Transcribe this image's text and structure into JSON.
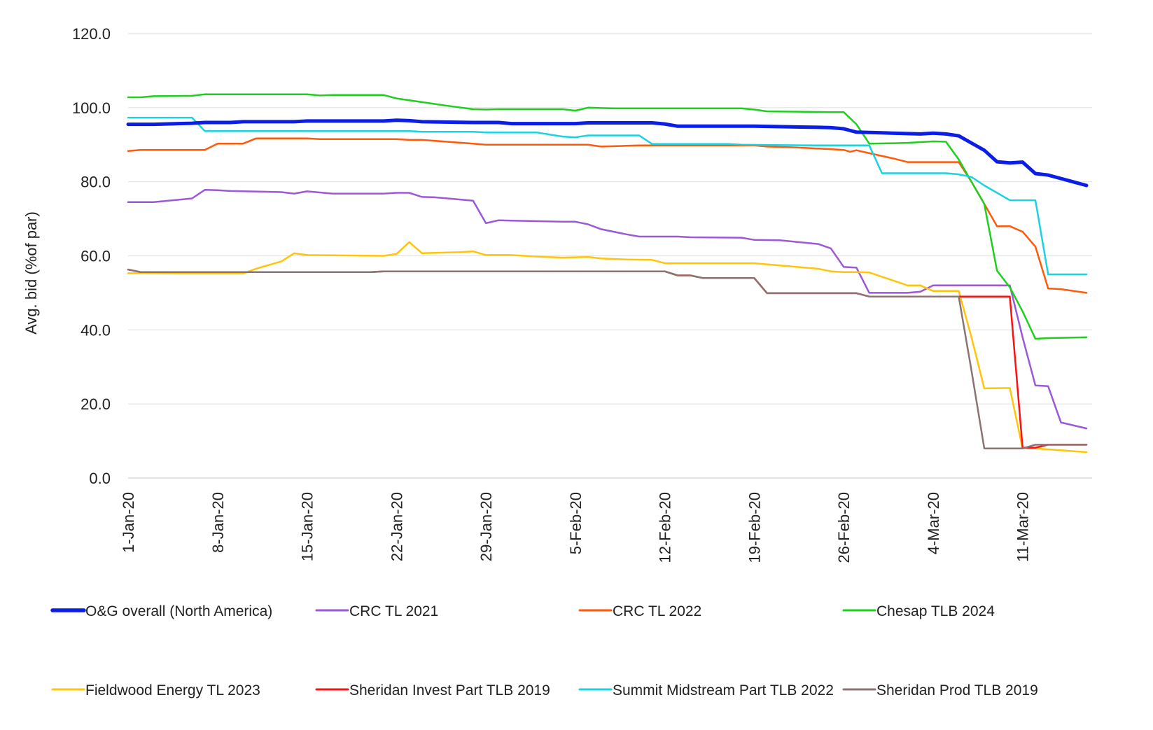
{
  "chart_data": {
    "type": "line",
    "title": "",
    "xlabel": "",
    "ylabel": "Avg. bid (%of par)",
    "ylim": [
      0,
      120
    ],
    "yticks": [
      "0.0",
      "20.0",
      "40.0",
      "60.0",
      "80.0",
      "100.0",
      "120.0"
    ],
    "x_tick_labels": [
      "1-Jan-20",
      "8-Jan-20",
      "15-Jan-20",
      "22-Jan-20",
      "29-Jan-20",
      "5-Feb-20",
      "12-Feb-20",
      "19-Feb-20",
      "26-Feb-20",
      "4-Mar-20",
      "11-Mar-20"
    ],
    "x_tick_days": [
      1,
      8,
      15,
      22,
      29,
      36,
      43,
      50,
      57,
      64,
      71
    ],
    "xlim_days": [
      1,
      76
    ],
    "grid": "horizontal",
    "legend_position": "bottom",
    "series": [
      {
        "name": "O&G overall (North America)",
        "color": "#0a1ee6",
        "width": 5,
        "points": [
          [
            1,
            95.5
          ],
          [
            3,
            95.5
          ],
          [
            6,
            95.8
          ],
          [
            7,
            96.0
          ],
          [
            9,
            96.0
          ],
          [
            10,
            96.2
          ],
          [
            14,
            96.2
          ],
          [
            15,
            96.4
          ],
          [
            21,
            96.4
          ],
          [
            22,
            96.6
          ],
          [
            23,
            96.5
          ],
          [
            24,
            96.2
          ],
          [
            28,
            96.0
          ],
          [
            29,
            96.0
          ],
          [
            30,
            96.0
          ],
          [
            31,
            95.7
          ],
          [
            36,
            95.7
          ],
          [
            37,
            95.9
          ],
          [
            42,
            95.9
          ],
          [
            43,
            95.6
          ],
          [
            44,
            95.0
          ],
          [
            50,
            95.0
          ],
          [
            55,
            94.7
          ],
          [
            56,
            94.6
          ],
          [
            57,
            94.3
          ],
          [
            58,
            93.4
          ],
          [
            60,
            93.2
          ],
          [
            62,
            93.0
          ],
          [
            63,
            92.9
          ],
          [
            64,
            93.1
          ],
          [
            65,
            92.9
          ],
          [
            66,
            92.4
          ],
          [
            68,
            88.5
          ],
          [
            69,
            85.4
          ],
          [
            70,
            85.1
          ],
          [
            71,
            85.3
          ],
          [
            72,
            82.2
          ],
          [
            73,
            81.8
          ],
          [
            76,
            79.0
          ]
        ]
      },
      {
        "name": "CRC TL 2021",
        "color": "#9b59d6",
        "width": 2.5,
        "points": [
          [
            1,
            74.5
          ],
          [
            3,
            74.5
          ],
          [
            6,
            75.5
          ],
          [
            7,
            77.8
          ],
          [
            8,
            77.7
          ],
          [
            9,
            77.5
          ],
          [
            13,
            77.2
          ],
          [
            14,
            76.8
          ],
          [
            15,
            77.4
          ],
          [
            16,
            77.1
          ],
          [
            17,
            76.8
          ],
          [
            21,
            76.8
          ],
          [
            22,
            77.0
          ],
          [
            23,
            77.0
          ],
          [
            24,
            75.9
          ],
          [
            25,
            75.8
          ],
          [
            26,
            75.5
          ],
          [
            28,
            74.9
          ],
          [
            29,
            68.8
          ],
          [
            30,
            69.6
          ],
          [
            31,
            69.5
          ],
          [
            35,
            69.2
          ],
          [
            36,
            69.2
          ],
          [
            37,
            68.5
          ],
          [
            38,
            67.2
          ],
          [
            40,
            65.8
          ],
          [
            41,
            65.2
          ],
          [
            44,
            65.2
          ],
          [
            45,
            65.0
          ],
          [
            49,
            64.9
          ],
          [
            50,
            64.3
          ],
          [
            52,
            64.2
          ],
          [
            55,
            63.2
          ],
          [
            56,
            62.0
          ],
          [
            57,
            57.0
          ],
          [
            58,
            56.8
          ],
          [
            59,
            50.0
          ],
          [
            61,
            50.0
          ],
          [
            62,
            50.0
          ],
          [
            63,
            50.3
          ],
          [
            64,
            52.0
          ],
          [
            70,
            52.0
          ],
          [
            71,
            38.0
          ],
          [
            72,
            25.0
          ],
          [
            73,
            24.8
          ],
          [
            74,
            15.0
          ],
          [
            76,
            13.4
          ]
        ]
      },
      {
        "name": "CRC TL 2022",
        "color": "#ff5a0a",
        "width": 2.5,
        "points": [
          [
            1,
            88.3
          ],
          [
            2,
            88.6
          ],
          [
            6,
            88.6
          ],
          [
            7,
            88.6
          ],
          [
            8,
            90.3
          ],
          [
            10,
            90.3
          ],
          [
            11,
            91.7
          ],
          [
            15,
            91.7
          ],
          [
            16,
            91.5
          ],
          [
            22,
            91.5
          ],
          [
            23,
            91.3
          ],
          [
            24,
            91.3
          ],
          [
            28,
            90.3
          ],
          [
            29,
            90.0
          ],
          [
            36,
            90.0
          ],
          [
            37,
            90.0
          ],
          [
            38,
            89.5
          ],
          [
            40,
            89.7
          ],
          [
            41,
            89.8
          ],
          [
            50,
            89.8
          ],
          [
            51,
            89.5
          ],
          [
            53,
            89.3
          ],
          [
            56,
            88.8
          ],
          [
            57,
            88.6
          ],
          [
            57.5,
            88.1
          ],
          [
            58,
            88.5
          ],
          [
            59,
            87.7
          ],
          [
            61,
            86.2
          ],
          [
            62,
            85.3
          ],
          [
            65,
            85.3
          ],
          [
            66,
            85.3
          ],
          [
            67,
            80.0
          ],
          [
            68,
            74.0
          ],
          [
            69,
            68.0
          ],
          [
            70,
            68.0
          ],
          [
            71,
            66.5
          ],
          [
            72,
            62.5
          ],
          [
            73,
            51.2
          ],
          [
            74,
            51.0
          ],
          [
            76,
            50.0
          ]
        ]
      },
      {
        "name": "Chesap TLB 2024",
        "color": "#1ecf1e",
        "width": 2.5,
        "points": [
          [
            1,
            102.8
          ],
          [
            2,
            102.8
          ],
          [
            3,
            103.1
          ],
          [
            6,
            103.2
          ],
          [
            7,
            103.6
          ],
          [
            15,
            103.6
          ],
          [
            16,
            103.3
          ],
          [
            17,
            103.4
          ],
          [
            21,
            103.4
          ],
          [
            22,
            102.5
          ],
          [
            24,
            101.5
          ],
          [
            26,
            100.5
          ],
          [
            28,
            99.6
          ],
          [
            29,
            99.5
          ],
          [
            30,
            99.6
          ],
          [
            35,
            99.6
          ],
          [
            36,
            99.2
          ],
          [
            37,
            100.0
          ],
          [
            38,
            99.9
          ],
          [
            39,
            99.8
          ],
          [
            49,
            99.8
          ],
          [
            50,
            99.5
          ],
          [
            51,
            99.0
          ],
          [
            56,
            98.8
          ],
          [
            57,
            98.8
          ],
          [
            58,
            95.5
          ],
          [
            59,
            90.3
          ],
          [
            61,
            90.4
          ],
          [
            62,
            90.5
          ],
          [
            63,
            90.7
          ],
          [
            64,
            90.9
          ],
          [
            65,
            90.8
          ],
          [
            66,
            86.0
          ],
          [
            67,
            80.0
          ],
          [
            68,
            74.0
          ],
          [
            69,
            56.0
          ],
          [
            70,
            51.5
          ],
          [
            71,
            45.0
          ],
          [
            72,
            37.6
          ],
          [
            73,
            37.8
          ],
          [
            76,
            38.0
          ]
        ]
      },
      {
        "name": "Fieldwood Energy TL 2023",
        "color": "#ffc50a",
        "width": 2.5,
        "points": [
          [
            1,
            55.3
          ],
          [
            2,
            55.3
          ],
          [
            5,
            55.2
          ],
          [
            10,
            55.2
          ],
          [
            11,
            56.5
          ],
          [
            13,
            58.5
          ],
          [
            14,
            60.7
          ],
          [
            15,
            60.2
          ],
          [
            21,
            60.0
          ],
          [
            22,
            60.5
          ],
          [
            23,
            63.7
          ],
          [
            24,
            60.7
          ],
          [
            25,
            60.8
          ],
          [
            27,
            61.0
          ],
          [
            28,
            61.2
          ],
          [
            29,
            60.2
          ],
          [
            31,
            60.2
          ],
          [
            32,
            60.0
          ],
          [
            33,
            59.8
          ],
          [
            35,
            59.5
          ],
          [
            36,
            59.6
          ],
          [
            37,
            59.7
          ],
          [
            38,
            59.3
          ],
          [
            40,
            59.0
          ],
          [
            42,
            58.9
          ],
          [
            43,
            58.0
          ],
          [
            49,
            58.0
          ],
          [
            50,
            58.0
          ],
          [
            52,
            57.4
          ],
          [
            55,
            56.5
          ],
          [
            56,
            55.8
          ],
          [
            57,
            55.6
          ],
          [
            58,
            55.6
          ],
          [
            59,
            55.5
          ],
          [
            62,
            52.0
          ],
          [
            63,
            52.0
          ],
          [
            64,
            50.5
          ],
          [
            65,
            50.5
          ],
          [
            66,
            50.5
          ],
          [
            67,
            38.0
          ],
          [
            68,
            24.2
          ],
          [
            70,
            24.3
          ],
          [
            71,
            8.0
          ],
          [
            72,
            8.0
          ],
          [
            76,
            7.0
          ]
        ]
      },
      {
        "name": "Sheridan Invest Part TLB 2019",
        "color": "#ff1010",
        "width": 2.5,
        "points": [
          [
            1,
            56.3
          ],
          [
            2,
            55.6
          ],
          [
            10,
            55.6
          ],
          [
            20,
            55.6
          ],
          [
            21,
            55.8
          ],
          [
            43,
            55.8
          ],
          [
            44,
            54.7
          ],
          [
            45,
            54.7
          ],
          [
            46,
            54.0
          ],
          [
            50,
            54.0
          ],
          [
            51,
            49.9
          ],
          [
            57,
            49.9
          ],
          [
            58,
            49.9
          ],
          [
            59,
            49.0
          ],
          [
            66,
            49.0
          ],
          [
            69,
            49.0
          ],
          [
            70,
            49.0
          ],
          [
            71,
            8.2
          ],
          [
            72,
            8.2
          ],
          [
            73,
            9.0
          ],
          [
            76,
            9.0
          ]
        ]
      },
      {
        "name": "Summit Midstream Part TLB 2022",
        "color": "#1ad2e0",
        "width": 2.5,
        "points": [
          [
            1,
            97.3
          ],
          [
            6,
            97.3
          ],
          [
            7,
            93.7
          ],
          [
            15,
            93.7
          ],
          [
            23,
            93.7
          ],
          [
            24,
            93.5
          ],
          [
            28,
            93.5
          ],
          [
            29,
            93.3
          ],
          [
            33,
            93.3
          ],
          [
            35,
            92.2
          ],
          [
            36,
            92.0
          ],
          [
            37,
            92.5
          ],
          [
            40,
            92.5
          ],
          [
            41,
            92.5
          ],
          [
            42,
            90.2
          ],
          [
            48,
            90.2
          ],
          [
            49,
            90.0
          ],
          [
            55,
            89.8
          ],
          [
            57,
            89.8
          ],
          [
            59,
            89.8
          ],
          [
            60,
            82.3
          ],
          [
            65,
            82.3
          ],
          [
            66,
            82.0
          ],
          [
            67,
            81.3
          ],
          [
            68,
            79.0
          ],
          [
            70,
            75.0
          ],
          [
            72,
            75.0
          ],
          [
            73,
            55.0
          ],
          [
            76,
            55.0
          ]
        ]
      },
      {
        "name": "Sheridan Prod TLB 2019",
        "color": "#8c7373",
        "width": 2.5,
        "points": [
          [
            1,
            56.3
          ],
          [
            2,
            55.6
          ],
          [
            10,
            55.6
          ],
          [
            20,
            55.6
          ],
          [
            21,
            55.8
          ],
          [
            43,
            55.8
          ],
          [
            44,
            54.7
          ],
          [
            45,
            54.7
          ],
          [
            46,
            54.0
          ],
          [
            50,
            54.0
          ],
          [
            51,
            49.9
          ],
          [
            57,
            49.9
          ],
          [
            58,
            49.9
          ],
          [
            59,
            49.0
          ],
          [
            66,
            49.0
          ],
          [
            67,
            29.0
          ],
          [
            68,
            8.0
          ],
          [
            70,
            8.0
          ],
          [
            71,
            8.0
          ],
          [
            72,
            9.0
          ],
          [
            76,
            9.0
          ]
        ]
      }
    ]
  }
}
